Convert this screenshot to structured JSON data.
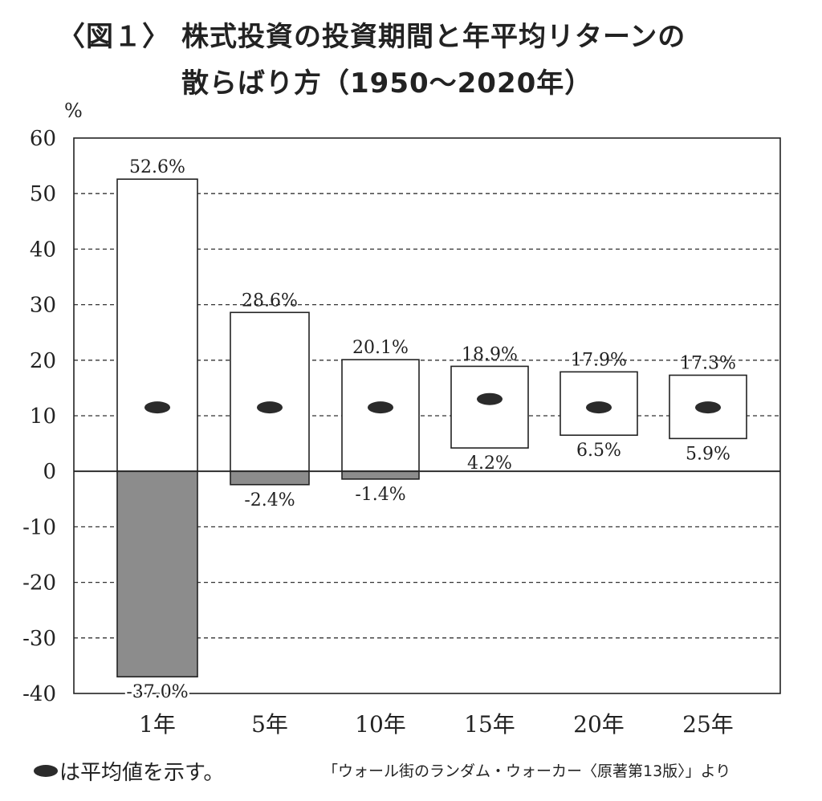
{
  "header": {
    "figure_label": "〈図１〉",
    "title_line1": "株式投資の投資期間と年平均リターンの",
    "title_line2": "散らばり方（1950〜2020年）"
  },
  "chart_data": {
    "type": "bar",
    "title": "株式投資の投資期間と年平均リターンの散らばり方（1950〜2020年）",
    "ylabel": "%",
    "ylim": [
      -40,
      60
    ],
    "yticks": [
      60,
      50,
      40,
      30,
      20,
      10,
      0,
      -10,
      -20,
      -30,
      -40
    ],
    "grid": true,
    "categories": [
      "1年",
      "5年",
      "10年",
      "15年",
      "20年",
      "25年"
    ],
    "max_values": [
      52.6,
      28.6,
      20.1,
      18.9,
      17.9,
      17.3
    ],
    "min_values": [
      -37.0,
      -2.4,
      -1.4,
      4.2,
      6.5,
      5.9
    ],
    "max_labels": [
      "52.6%",
      "28.6%",
      "20.1%",
      "18.9%",
      "17.9%",
      "17.3%"
    ],
    "min_labels": [
      "-37.0%",
      "-2.4%",
      "-1.4%",
      "4.2%",
      "6.5%",
      "5.9%"
    ],
    "mean_values": [
      11.5,
      11.5,
      11.5,
      13.0,
      11.5,
      11.5
    ],
    "colors": {
      "positive_fill": "#ffffff",
      "negative_fill": "#8c8c8c",
      "mean_marker": "#2b2b2b",
      "line": "#222222"
    }
  },
  "legend": {
    "text": "は平均値を示す。"
  },
  "source": {
    "text": "「ウォール街のランダム・ウォーカー〈原著第13版〉」より"
  }
}
